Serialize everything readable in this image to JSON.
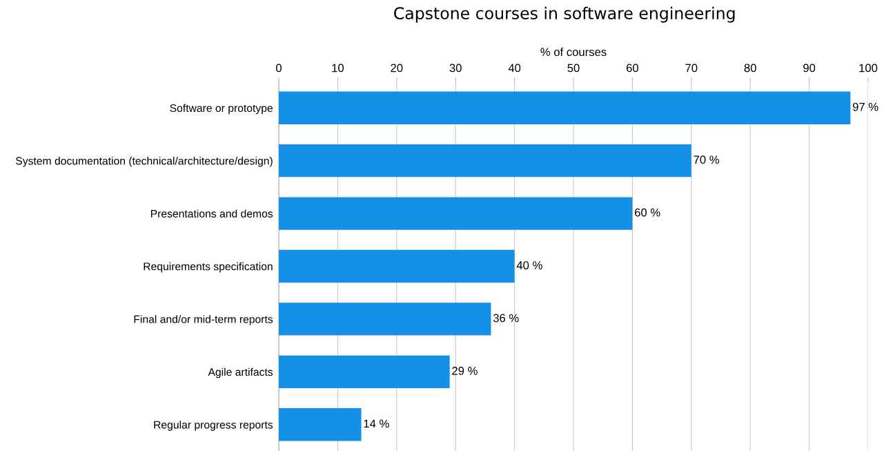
{
  "chart_data": {
    "type": "bar",
    "orientation": "horizontal",
    "title": "Capstone courses in software engineering",
    "xlabel": "% of courses",
    "categories": [
      "Software or prototype",
      "System documentation (technical/architecture/design)",
      "Presentations and demos",
      "Requirements specification",
      "Final and/or mid-term reports",
      "Agile artifacts",
      "Regular progress reports"
    ],
    "values": [
      97,
      70,
      60,
      40,
      36,
      29,
      14
    ],
    "value_labels": [
      "97 %",
      "70 %",
      "60 %",
      "40 %",
      "36 %",
      "29 %",
      "14 %"
    ],
    "color": "#1490e6",
    "xlim": [
      0,
      100
    ],
    "xticks": [
      0,
      10,
      20,
      30,
      40,
      50,
      60,
      70,
      80,
      90,
      100
    ],
    "grid": "x",
    "legend": false
  }
}
